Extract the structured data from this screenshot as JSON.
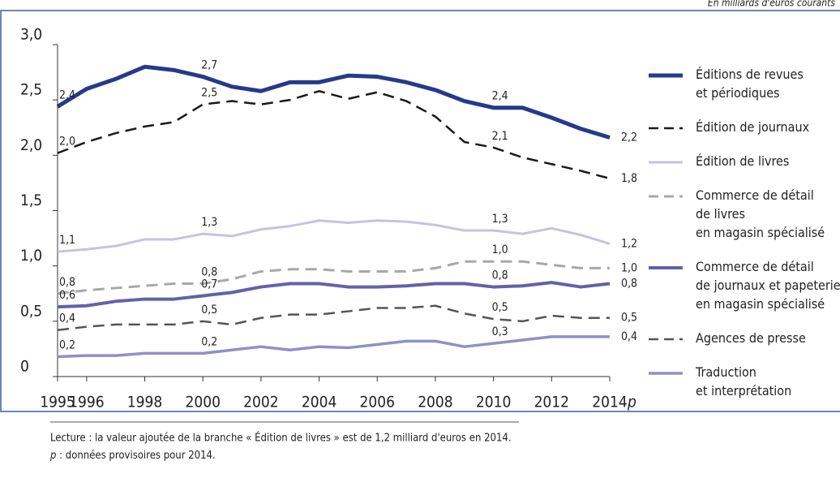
{
  "chart_data": {
    "type": "line",
    "subtitle": "En milliards d'euros courants",
    "x": [
      1995,
      1996,
      1997,
      1998,
      1999,
      2000,
      2001,
      2002,
      2003,
      2004,
      2005,
      2006,
      2007,
      2008,
      2009,
      2010,
      2011,
      2012,
      2013,
      2014
    ],
    "xlim": [
      1995,
      2014
    ],
    "xticks": [
      1995,
      1996,
      1998,
      2000,
      2002,
      2004,
      2006,
      2008,
      2010,
      2012,
      2014
    ],
    "x_provisional_marker": "p",
    "ylim": [
      0,
      3
    ],
    "yticks": [
      0,
      {
        "value": 0.5,
        "label": "0,5"
      },
      {
        "value": 1,
        "label": "1,0"
      },
      {
        "value": 1.5,
        "label": "1,5"
      },
      {
        "value": 2,
        "label": "2,0"
      },
      {
        "value": 2.5,
        "label": "2,5"
      },
      {
        "value": 3,
        "label": "3,0"
      }
    ],
    "series": [
      {
        "name": "Éditions de revues\net périodiques",
        "color": "#253a8a",
        "width": 5,
        "dash": "solid",
        "values": [
          2.44,
          2.6,
          2.69,
          2.8,
          2.77,
          2.71,
          2.62,
          2.58,
          2.66,
          2.66,
          2.72,
          2.71,
          2.66,
          2.59,
          2.49,
          2.43,
          2.43,
          2.34,
          2.24,
          2.16
        ],
        "value_labels": [
          "2,4",
          null,
          null,
          null,
          null,
          "2,7",
          null,
          null,
          null,
          null,
          null,
          null,
          null,
          null,
          null,
          "2,4",
          null,
          null,
          null,
          "2,2"
        ]
      },
      {
        "name": "Édition de journaux",
        "color": "#1a1a1a",
        "width": 2.5,
        "dash": "dashed",
        "values": [
          2.02,
          2.12,
          2.2,
          2.26,
          2.3,
          2.46,
          2.49,
          2.46,
          2.5,
          2.58,
          2.51,
          2.57,
          2.49,
          2.35,
          2.12,
          2.07,
          1.98,
          1.92,
          1.86,
          1.79
        ],
        "value_labels": [
          "2,0",
          null,
          null,
          null,
          null,
          "2,5",
          null,
          null,
          null,
          null,
          null,
          null,
          null,
          null,
          null,
          "2,1",
          null,
          null,
          null,
          "1,8"
        ]
      },
      {
        "name": "Édition de livres",
        "color": "#c5c3e0",
        "width": 3,
        "dash": "solid",
        "values": [
          1.13,
          1.15,
          1.18,
          1.24,
          1.24,
          1.29,
          1.27,
          1.33,
          1.36,
          1.41,
          1.39,
          1.41,
          1.4,
          1.37,
          1.32,
          1.32,
          1.29,
          1.34,
          1.28,
          1.2
        ],
        "value_labels": [
          "1,1",
          null,
          null,
          null,
          null,
          "1,3",
          null,
          null,
          null,
          null,
          null,
          null,
          null,
          null,
          null,
          "1,3",
          null,
          null,
          null,
          "1,2"
        ]
      },
      {
        "name": "Commerce de détail\nde livres\nen magasin spécialisé",
        "color": "#a8a8a8",
        "width": 3,
        "dash": "dashed",
        "values": [
          0.75,
          0.78,
          0.8,
          0.82,
          0.84,
          0.84,
          0.88,
          0.95,
          0.97,
          0.97,
          0.95,
          0.95,
          0.95,
          0.98,
          1.04,
          1.04,
          1.04,
          1.01,
          0.98,
          0.98
        ],
        "value_labels": [
          "0,8",
          null,
          null,
          null,
          null,
          "0,8",
          null,
          null,
          null,
          null,
          null,
          null,
          null,
          null,
          null,
          "1,0",
          null,
          null,
          null,
          "1,0"
        ]
      },
      {
        "name": "Commerce de détail\nde journaux et papeterie\nen magasin spécialisé",
        "color": "#5f64a8",
        "width": 4,
        "dash": "solid",
        "values": [
          0.63,
          0.64,
          0.68,
          0.7,
          0.7,
          0.73,
          0.76,
          0.81,
          0.84,
          0.84,
          0.81,
          0.81,
          0.82,
          0.84,
          0.84,
          0.81,
          0.82,
          0.85,
          0.81,
          0.84
        ],
        "value_labels": [
          "0,6",
          null,
          null,
          null,
          null,
          "0,7",
          null,
          null,
          null,
          null,
          null,
          null,
          null,
          null,
          null,
          "0,8",
          null,
          null,
          null,
          "0,8"
        ]
      },
      {
        "name": "Agences de presse",
        "color": "#555555",
        "width": 2.5,
        "dash": "dashed",
        "values": [
          0.42,
          0.45,
          0.47,
          0.47,
          0.47,
          0.5,
          0.47,
          0.53,
          0.56,
          0.56,
          0.59,
          0.62,
          0.62,
          0.64,
          0.57,
          0.52,
          0.5,
          0.55,
          0.53,
          0.53
        ],
        "value_labels": [
          "0,4",
          null,
          null,
          null,
          null,
          "0,5",
          null,
          null,
          null,
          null,
          null,
          null,
          null,
          null,
          null,
          "0,5",
          null,
          null,
          null,
          "0,5"
        ]
      },
      {
        "name": "Traduction\net interprétation",
        "color": "#8e91c6",
        "width": 3.5,
        "dash": "solid",
        "values": [
          0.18,
          0.19,
          0.19,
          0.21,
          0.21,
          0.21,
          0.24,
          0.27,
          0.24,
          0.27,
          0.26,
          0.29,
          0.32,
          0.32,
          0.27,
          0.3,
          0.33,
          0.36,
          0.36,
          0.36
        ],
        "value_labels": [
          "0,2",
          null,
          null,
          null,
          null,
          "0,2",
          null,
          null,
          null,
          null,
          null,
          null,
          null,
          null,
          null,
          "0,3",
          null,
          null,
          null,
          "0,4"
        ]
      }
    ],
    "reading_note": "Lecture : la valeur ajoutée de la branche « Édition de livres » est de 1,2 milliard d'euros en 2014.",
    "footnote_symbol": "p",
    "footnote_text": " : données provisoires pour 2014."
  }
}
